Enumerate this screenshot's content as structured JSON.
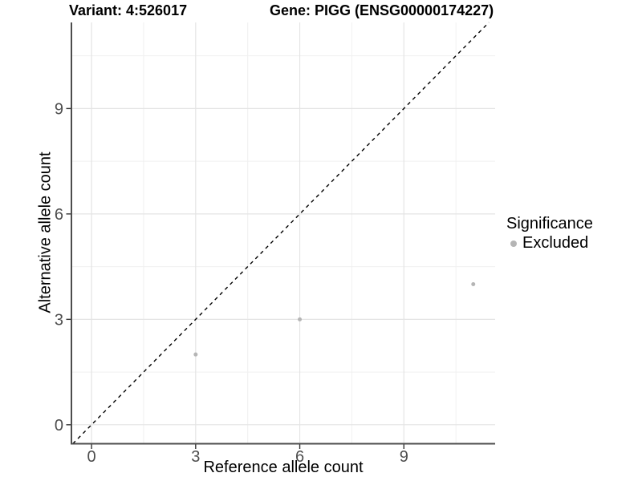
{
  "titles": {
    "variant": "Variant: 4:526017",
    "gene": "Gene: PIGG (ENSG00000174227)"
  },
  "chart_data": {
    "type": "scatter",
    "title_variant": "Variant: 4:526017",
    "title_gene": "Gene: PIGG (ENSG00000174227)",
    "xlabel": "Reference allele count",
    "ylabel": "Alternative allele count",
    "xlim": [
      -0.58,
      11.63
    ],
    "ylim": [
      -0.54,
      11.45
    ],
    "x_ticks": [
      0,
      3,
      6,
      9
    ],
    "y_ticks": [
      0,
      3,
      6,
      9
    ],
    "x_minor": [
      1.5,
      4.5,
      7.5,
      10.5
    ],
    "y_minor": [
      1.5,
      4.5,
      7.5,
      10.5
    ],
    "grid": true,
    "identity_line": {
      "style": "dashed",
      "color": "#000000",
      "from": "y=x"
    },
    "series": [
      {
        "name": "Excluded",
        "color": "#b5b5b5",
        "points": [
          {
            "x": 3,
            "y": 2
          },
          {
            "x": 6,
            "y": 3
          },
          {
            "x": 11,
            "y": 4
          }
        ]
      }
    ],
    "legend": {
      "title": "Significance",
      "position": "right",
      "items": [
        {
          "label": "Excluded",
          "color": "#b5b5b5"
        }
      ]
    },
    "colors": {
      "axis_line": "#4d4d4d",
      "tick_mark": "#333333",
      "tick_label": "#4d4d4d",
      "grid_major": "#e4e4e4",
      "grid_minor": "#f0f0f0",
      "background": "#ffffff"
    }
  }
}
